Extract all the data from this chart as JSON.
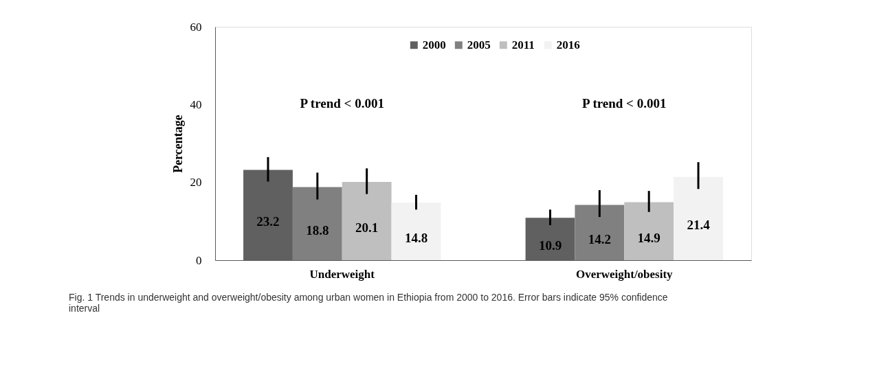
{
  "chart_data": {
    "type": "bar",
    "ylabel": "Percentage",
    "categories": [
      "Underweight",
      "Overweight/obesity"
    ],
    "series": [
      {
        "name": "2000",
        "color": "#606060",
        "values": [
          23.2,
          10.9
        ],
        "errors": [
          [
            20.2,
            26.5
          ],
          [
            9.0,
            13.0
          ]
        ]
      },
      {
        "name": "2005",
        "color": "#808080",
        "values": [
          18.8,
          14.2
        ],
        "errors": [
          [
            15.6,
            22.5
          ],
          [
            11.1,
            18.0
          ]
        ]
      },
      {
        "name": "2011",
        "color": "#bfbfbf",
        "values": [
          20.1,
          14.9
        ],
        "errors": [
          [
            17.0,
            23.6
          ],
          [
            12.4,
            17.8
          ]
        ]
      },
      {
        "name": "2016",
        "color": "#f2f2f2",
        "values": [
          14.8,
          21.4
        ],
        "errors": [
          [
            13.0,
            16.8
          ],
          [
            18.3,
            25.2
          ]
        ]
      }
    ],
    "ylim": [
      0,
      60
    ],
    "yticks": [
      0,
      20,
      40,
      60
    ],
    "grid": false,
    "legend": "top",
    "data_labels": true,
    "annotations": [
      "P trend < 0.001",
      "P trend < 0.001",
      "Fig. 1 Trends in underweight and overweight/obesity among urban women in Ethiopia from 2000 to 2016. Error bars indicate 95% confidence interval"
    ]
  }
}
